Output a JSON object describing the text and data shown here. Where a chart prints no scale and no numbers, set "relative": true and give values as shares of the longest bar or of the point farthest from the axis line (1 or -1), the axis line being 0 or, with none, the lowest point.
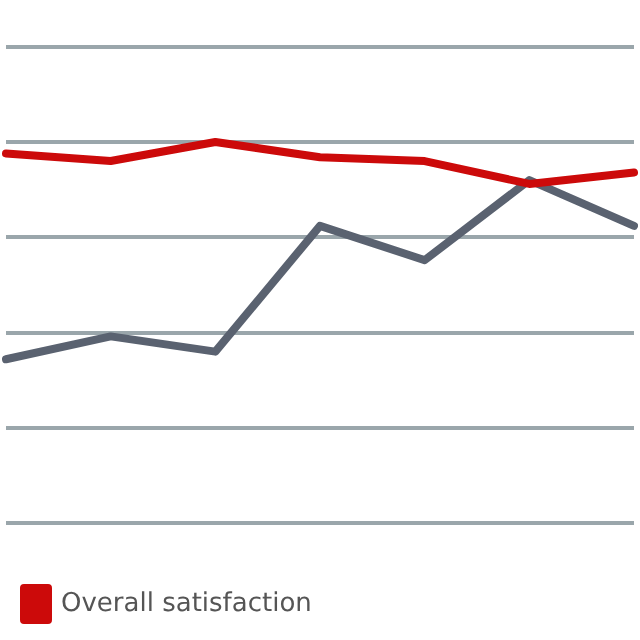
{
  "chart_data": {
    "type": "line",
    "relative": true,
    "categories": [
      null,
      null,
      null,
      null,
      null,
      null,
      null
    ],
    "series": [
      {
        "name": "Overall satisfaction",
        "color": "#cc0a0a",
        "values": [
          0.97,
          0.95,
          1,
          0.96,
          0.95,
          0.89,
          0.92
        ]
      },
      {
        "color": "#5a6270",
        "values": [
          0.43,
          0.49,
          0.45,
          0.78,
          0.69,
          0.9,
          0.78
        ]
      }
    ],
    "grid": "y",
    "legend": "bottom left",
    "marker": "none",
    "line_style": "solid"
  }
}
